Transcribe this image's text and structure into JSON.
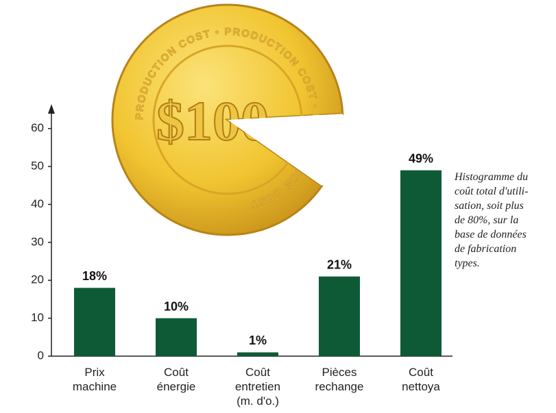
{
  "chart_data": {
    "type": "bar",
    "categories": [
      "Prix\nmachine",
      "Coût\nénergie",
      "Coût\nentretien\n(m. d'o.)",
      "Pièces\nrechange",
      "Coût\nnettoya"
    ],
    "values": [
      18,
      10,
      1,
      21,
      49
    ],
    "value_labels": [
      "18%",
      "10%",
      "1%",
      "21%",
      "49%"
    ],
    "color": "#0e5a37",
    "ylim": [
      0,
      65
    ],
    "yticks": [
      0,
      10,
      20,
      30,
      40,
      50,
      60
    ],
    "annotation": "Histogramme du\ncoût total d'utili-\nsation, soit plus\nde 80%, sur la\nbase de données\nde fabrication\ntypes."
  },
  "coin": {
    "amount": "$100",
    "ring_text": "PRODUCTION COST • PRODUCTION COST • PRODUCTION COST"
  }
}
